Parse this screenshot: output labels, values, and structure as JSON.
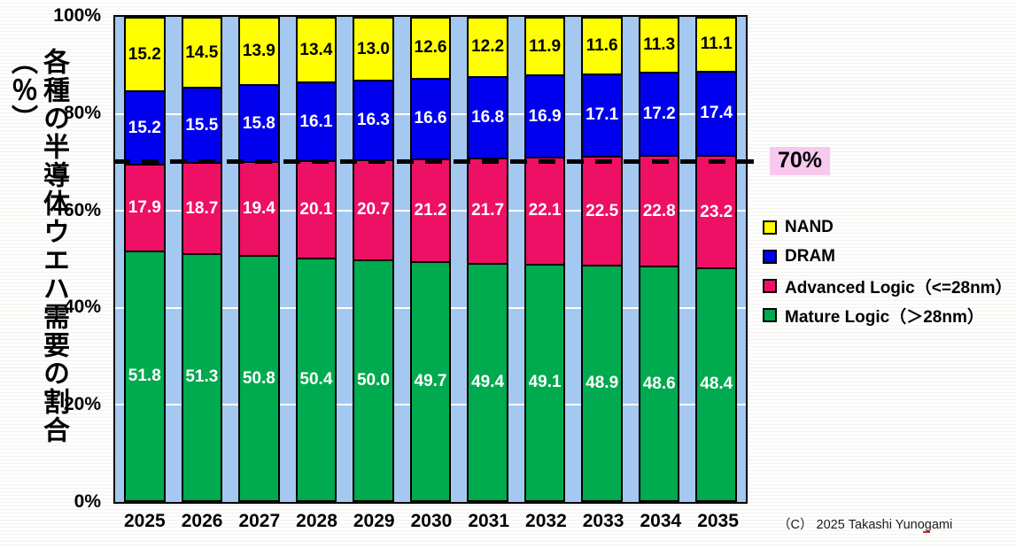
{
  "copyright": "（C） 2025 Takashi Yunogami",
  "chart_data": {
    "type": "bar",
    "stacked": true,
    "title": "",
    "xlabel": "",
    "ylabel": "各種の半導体ウエハ需要の割合（％）",
    "ylim": [
      0,
      100
    ],
    "yticks": [
      "0%",
      "20%",
      "40%",
      "60%",
      "80%",
      "100%"
    ],
    "grid": "white horizontal gridlines every 20%, behind bars",
    "plot_background_color": "#A5C8F0",
    "legend_position": "right",
    "categories": [
      "2025",
      "2026",
      "2027",
      "2028",
      "2029",
      "2030",
      "2031",
      "2032",
      "2033",
      "2034",
      "2035"
    ],
    "series": [
      {
        "name": "NAND",
        "color": "#FFFF00",
        "label_color": "#000000",
        "values": [
          15.2,
          14.5,
          13.9,
          13.4,
          13.0,
          12.6,
          12.2,
          11.9,
          11.6,
          11.3,
          11.1
        ]
      },
      {
        "name": "DRAM",
        "color": "#0000EE",
        "label_color": "#FFFFFF",
        "values": [
          15.2,
          15.5,
          15.8,
          16.1,
          16.3,
          16.6,
          16.8,
          16.9,
          17.1,
          17.2,
          17.4
        ]
      },
      {
        "name": "Advanced Logic（<=28nm）",
        "color": "#EE1064",
        "label_color": "#FFFFFF",
        "values": [
          17.9,
          18.7,
          19.4,
          20.1,
          20.7,
          21.2,
          21.7,
          22.1,
          22.5,
          22.8,
          23.2
        ]
      },
      {
        "name": "Mature Logic（＞28nm）",
        "color": "#00AA4E",
        "label_color": "#FFFFFF",
        "values": [
          51.8,
          51.3,
          50.8,
          50.4,
          50.0,
          49.7,
          49.4,
          49.1,
          48.9,
          48.6,
          48.4
        ]
      }
    ],
    "reference_line": {
      "value": 70,
      "label": "70%",
      "style": "black dashed",
      "label_background": "#F8C8EE"
    }
  }
}
